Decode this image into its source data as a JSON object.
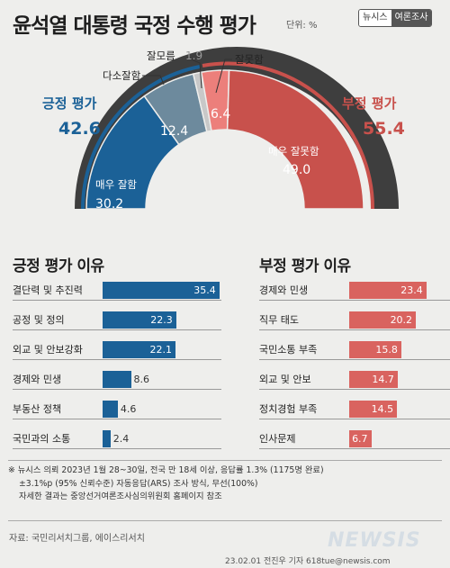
{
  "header": {
    "title": "윤석열 대통령 국정 수행 평가",
    "unit": "단위: %",
    "brand_left": "뉴시스",
    "brand_right": "여론조사"
  },
  "gauge": {
    "positive_title": "긍정 평가",
    "positive_value": "42.6",
    "negative_title": "부정 평가",
    "negative_value": "55.4",
    "segments": [
      {
        "label": "매우 잘함",
        "value": 30.2,
        "color": "#1b6197"
      },
      {
        "label": "다소잘함",
        "value": 12.4,
        "color": "#6d8a9d"
      },
      {
        "label": "잘모름",
        "value": 1.9,
        "color": "#c8c8c8"
      },
      {
        "label": "잘못함",
        "value": 6.4,
        "color": "#ec7f7b"
      },
      {
        "label": "매우 잘못함",
        "value": 49.0,
        "color": "#c8514c"
      }
    ],
    "value_texts": [
      "30.2",
      "12.4",
      "1.9",
      "6.4",
      "49.0"
    ]
  },
  "chart_data": [
    {
      "type": "bar",
      "title": "긍정 평가 이유",
      "categories": [
        "결단력 및 추진력",
        "공정 및 정의",
        "외교 및 안보강화",
        "경제와 민생",
        "부동산 정책",
        "국민과의 소통"
      ],
      "values": [
        35.4,
        22.3,
        22.1,
        8.6,
        4.6,
        2.4
      ],
      "value_labels": [
        "35.4",
        "22.3",
        "22.1",
        "8.6",
        "4.6",
        "2.4"
      ],
      "color": "#1b6197"
    },
    {
      "type": "bar",
      "title": "부정 평가 이유",
      "categories": [
        "경제와 민생",
        "직무 태도",
        "국민소통 부족",
        "외교 및 안보",
        "정치경험 부족",
        "인사문제"
      ],
      "values": [
        23.4,
        20.2,
        15.8,
        14.7,
        14.5,
        6.7
      ],
      "value_labels": [
        "23.4",
        "20.2",
        "15.8",
        "14.7",
        "14.5",
        "6.7"
      ],
      "color": "#d9635f"
    }
  ],
  "footnote": {
    "line1": "※ 뉴시스 의뢰 2023년 1월 28~30일, 전국 만 18세 이상, 응답률 1.3% (1175명 완료)",
    "line2": "±3.1%p (95% 신뢰수준) 자동응답(ARS) 조사 방식, 무선(100%)",
    "line3": "자세한 결과는 중앙선거여론조사심의위원회 홈페이지 참조"
  },
  "source": "자료: 국민리서치그룹, 에이스리서치",
  "credit": "23.02.01 전진우 기자 618tue@newsis.com",
  "logo_text": "NEWSIS"
}
